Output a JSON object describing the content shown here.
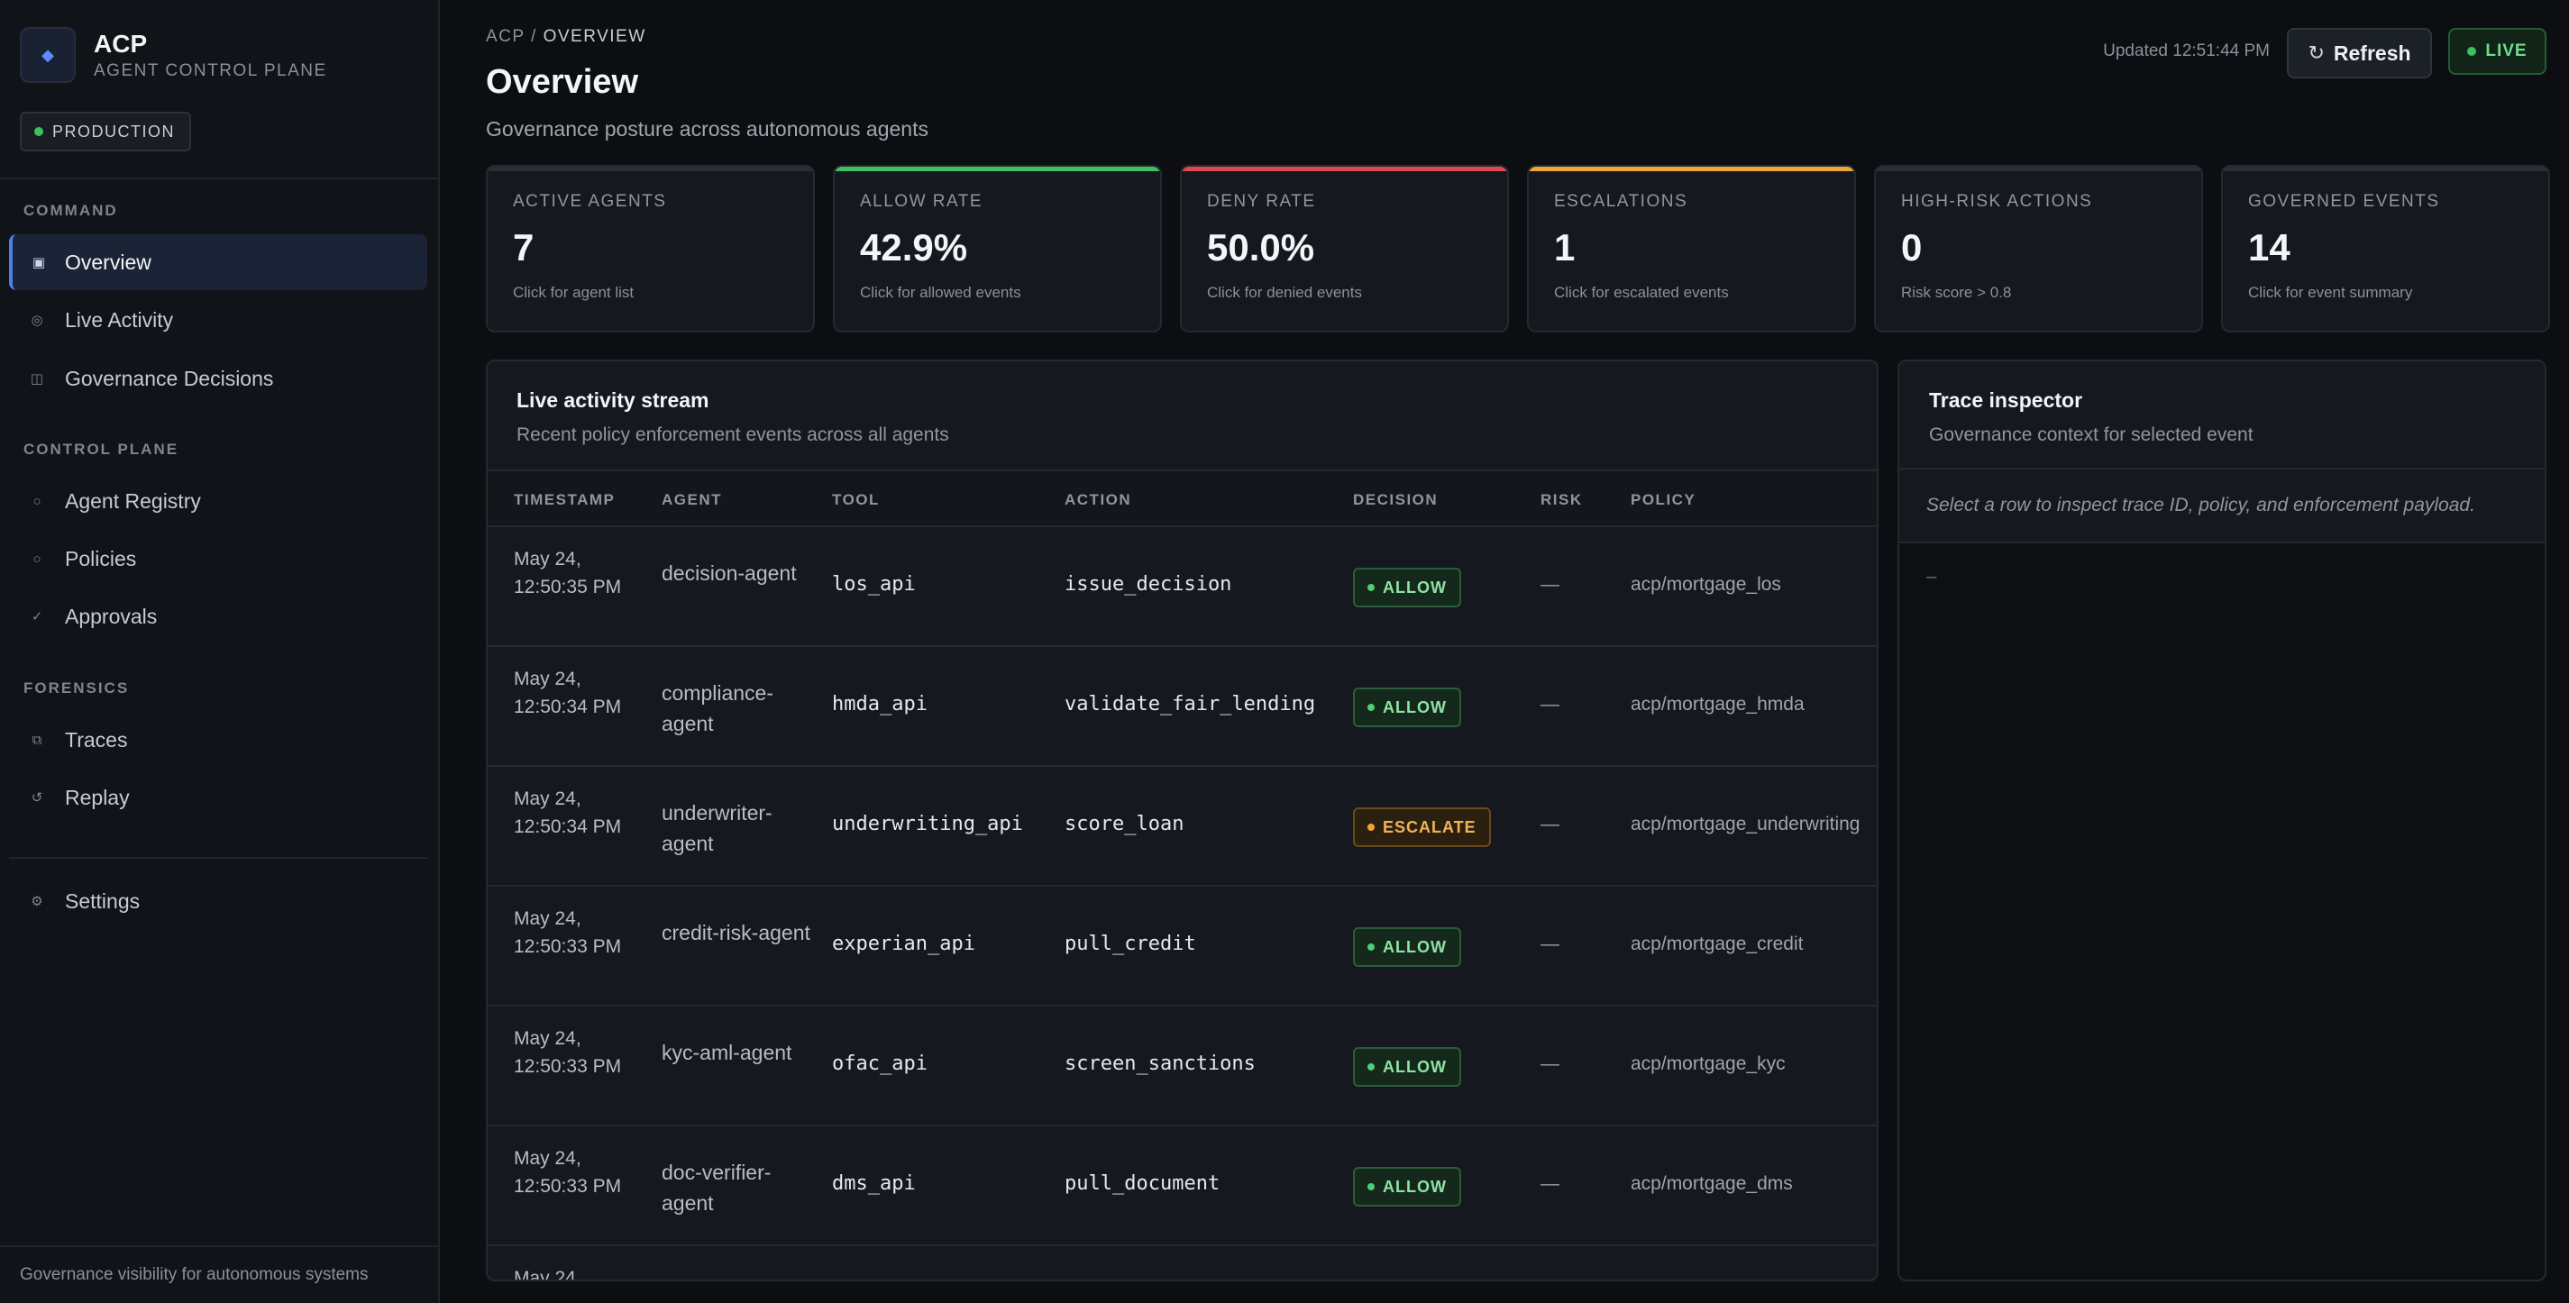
{
  "brand": {
    "logo_icon": "diamond-icon",
    "name": "ACP",
    "subtitle": "AGENT CONTROL PLANE",
    "environment": "PRODUCTION"
  },
  "sidebar": {
    "sections": [
      {
        "label": "COMMAND",
        "items": [
          {
            "label": "Overview",
            "icon": "square-icon",
            "active": true
          },
          {
            "label": "Live Activity",
            "icon": "radar-icon"
          },
          {
            "label": "Governance Decisions",
            "icon": "columns-icon"
          }
        ]
      },
      {
        "label": "CONTROL PLANE",
        "items": [
          {
            "label": "Agent Registry",
            "icon": "circle-icon"
          },
          {
            "label": "Policies",
            "icon": "circle-icon"
          },
          {
            "label": "Approvals",
            "icon": "check-icon"
          }
        ]
      },
      {
        "label": "FORENSICS",
        "items": [
          {
            "label": "Traces",
            "icon": "layers-icon"
          },
          {
            "label": "Replay",
            "icon": "replay-icon"
          }
        ]
      }
    ],
    "settings": {
      "label": "Settings",
      "icon": "gear-icon"
    },
    "footer": "Governance visibility for autonomous systems"
  },
  "header": {
    "breadcrumb_root": "ACP",
    "breadcrumb_sep": "/",
    "breadcrumb_current": "OVERVIEW",
    "title": "Overview",
    "subtitle": "Governance posture across autonomous agents",
    "updated": "Updated 12:51:44 PM",
    "refresh_label": "Refresh",
    "live_label": "LIVE"
  },
  "kpis": [
    {
      "label": "ACTIVE AGENTS",
      "value": "7",
      "hint": "Click for agent list",
      "accent": "#2a2f37"
    },
    {
      "label": "ALLOW RATE",
      "value": "42.9%",
      "hint": "Click for allowed events",
      "accent": "#3fbf5f"
    },
    {
      "label": "DENY RATE",
      "value": "50.0%",
      "hint": "Click for denied events",
      "accent": "#e0474c"
    },
    {
      "label": "ESCALATIONS",
      "value": "1",
      "hint": "Click for escalated events",
      "accent": "#f0a53a"
    },
    {
      "label": "HIGH-RISK ACTIONS",
      "value": "0",
      "hint": "Risk score > 0.8",
      "accent": "#2a2f37"
    },
    {
      "label": "GOVERNED EVENTS",
      "value": "14",
      "hint": "Click for event summary",
      "accent": "#2a2f37"
    }
  ],
  "stream": {
    "title": "Live activity stream",
    "subtitle": "Recent policy enforcement events across all agents",
    "columns": [
      "TIMESTAMP",
      "AGENT",
      "TOOL",
      "ACTION",
      "DECISION",
      "RISK",
      "POLICY"
    ],
    "rows": [
      {
        "ts": "May 24, 12:50:35 PM",
        "agent": "decision-agent",
        "tool": "los_api",
        "action": "issue_decision",
        "decision": "ALLOW",
        "risk": "—",
        "policy": "acp/mortgage_los"
      },
      {
        "ts": "May 24, 12:50:34 PM",
        "agent": "compliance-agent",
        "tool": "hmda_api",
        "action": "validate_fair_lending",
        "decision": "ALLOW",
        "risk": "—",
        "policy": "acp/mortgage_hmda"
      },
      {
        "ts": "May 24, 12:50:34 PM",
        "agent": "underwriter-agent",
        "tool": "underwriting_api",
        "action": "score_loan",
        "decision": "ESCALATE",
        "risk": "—",
        "policy": "acp/mortgage_underwriting"
      },
      {
        "ts": "May 24, 12:50:33 PM",
        "agent": "credit-risk-agent",
        "tool": "experian_api",
        "action": "pull_credit",
        "decision": "ALLOW",
        "risk": "—",
        "policy": "acp/mortgage_credit"
      },
      {
        "ts": "May 24, 12:50:33 PM",
        "agent": "kyc-aml-agent",
        "tool": "ofac_api",
        "action": "screen_sanctions",
        "decision": "ALLOW",
        "risk": "—",
        "policy": "acp/mortgage_kyc"
      },
      {
        "ts": "May 24, 12:50:33 PM",
        "agent": "doc-verifier-agent",
        "tool": "dms_api",
        "action": "pull_document",
        "decision": "ALLOW",
        "risk": "—",
        "policy": "acp/mortgage_dms"
      },
      {
        "ts": "May 24",
        "agent": "",
        "tool": "",
        "action": "",
        "decision": "",
        "risk": "",
        "policy": ""
      }
    ]
  },
  "trace": {
    "title": "Trace inspector",
    "subtitle": "Governance context for selected event",
    "hint": "Select a row to inspect trace ID, policy, and enforcement payload.",
    "empty": "—"
  }
}
